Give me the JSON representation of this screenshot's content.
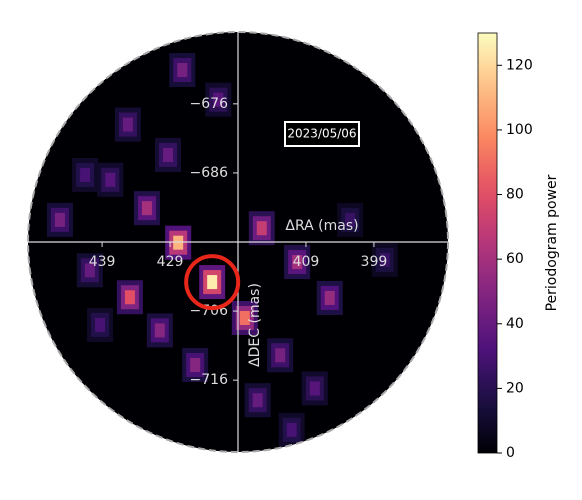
{
  "chart_data": {
    "type": "heatmap",
    "xlabel": "ΔRA (mas)",
    "ylabel": "ΔDEC (mas)",
    "annotation": "2023/05/06",
    "colorbar_label": "Periodogram power",
    "xlim": [
      449.9,
      388.1
    ],
    "ylim": [
      -726.4,
      -665.6
    ],
    "xticks": [
      439,
      429,
      409,
      399
    ],
    "yticks": [
      {
        "value": -676,
        "label": "−676"
      },
      {
        "value": -686,
        "label": "−686"
      },
      {
        "value": -706,
        "label": "−706"
      },
      {
        "value": -716,
        "label": "−716"
      }
    ],
    "clim": [
      0,
      130
    ],
    "cticks": [
      0,
      20,
      40,
      60,
      80,
      100,
      120
    ],
    "colormap": "magma",
    "highlight_color": "#e8261a",
    "highlight": {
      "ra": 422.8,
      "dec": -701.8
    },
    "peaks": [
      {
        "ra": 422.8,
        "dec": -701.8,
        "power": 125
      },
      {
        "ra": 427.8,
        "dec": -696.1,
        "power": 110
      },
      {
        "ra": 418.0,
        "dec": -707.0,
        "power": 90
      },
      {
        "ra": 434.9,
        "dec": -704.0,
        "power": 80
      },
      {
        "ra": 432.4,
        "dec": -691.1,
        "power": 60
      },
      {
        "ra": 415.5,
        "dec": -694.0,
        "power": 70
      },
      {
        "ra": 410.3,
        "dec": -698.9,
        "power": 60
      },
      {
        "ra": 405.5,
        "dec": -704.1,
        "power": 55
      },
      {
        "ra": 430.5,
        "dec": -708.8,
        "power": 50
      },
      {
        "ra": 425.3,
        "dec": -713.8,
        "power": 50
      },
      {
        "ra": 412.8,
        "dec": -712.4,
        "power": 45
      },
      {
        "ra": 407.7,
        "dec": -717.2,
        "power": 35
      },
      {
        "ra": 416.1,
        "dec": -718.9,
        "power": 40
      },
      {
        "ra": 445.2,
        "dec": -692.8,
        "power": 45
      },
      {
        "ra": 440.8,
        "dec": -700.1,
        "power": 40
      },
      {
        "ra": 437.8,
        "dec": -687.0,
        "power": 35
      },
      {
        "ra": 435.2,
        "dec": -679.0,
        "power": 40
      },
      {
        "ra": 429.3,
        "dec": -683.4,
        "power": 40
      },
      {
        "ra": 427.2,
        "dec": -671.1,
        "power": 45
      },
      {
        "ra": 421.9,
        "dec": -675.4,
        "power": 35
      },
      {
        "ra": 439.3,
        "dec": -708.0,
        "power": 30
      },
      {
        "ra": 402.5,
        "dec": -692.8,
        "power": 25
      },
      {
        "ra": 397.4,
        "dec": -698.6,
        "power": 25
      },
      {
        "ra": 411.1,
        "dec": -723.2,
        "power": 30
      },
      {
        "ra": 441.5,
        "dec": -686.3,
        "power": 30
      }
    ]
  }
}
